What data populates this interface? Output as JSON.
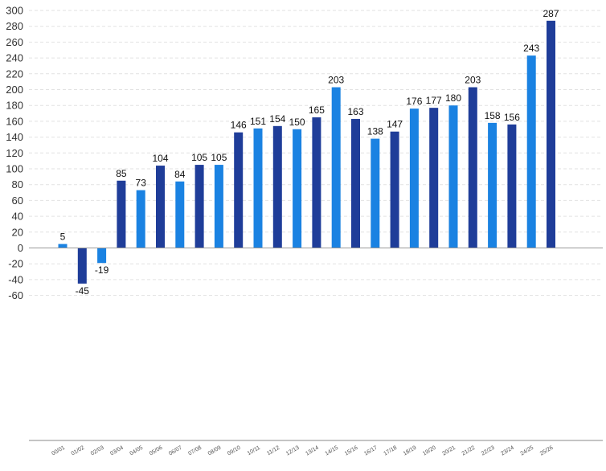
{
  "chart_data": {
    "type": "bar",
    "title": "",
    "xlabel": "",
    "ylabel": "",
    "ylim": [
      -60,
      300
    ],
    "yticks": [
      300,
      280,
      260,
      240,
      220,
      200,
      180,
      160,
      140,
      120,
      100,
      80,
      60,
      40,
      20,
      0,
      -20,
      -40,
      -60
    ],
    "grid": true,
    "legend": "none",
    "categories": [
      "00/01",
      "01/02",
      "02/03",
      "03/04",
      "04/05",
      "05/06",
      "06/07",
      "07/08",
      "08/09",
      "09/10",
      "10/11",
      "11/12",
      "12/13",
      "13/14",
      "14/15",
      "15/16",
      "16/17",
      "17/18",
      "18/19",
      "19/20",
      "20/21",
      "21/22",
      "22/23",
      "23/24",
      "24/25",
      "25/26"
    ],
    "values": [
      5,
      -45,
      -19,
      85,
      73,
      104,
      84,
      105,
      105,
      146,
      151,
      154,
      150,
      165,
      203,
      163,
      138,
      147,
      176,
      177,
      180,
      203,
      158,
      156,
      243,
      287
    ],
    "colors": {
      "dark": "#1f3d99",
      "light": "#1a82e2"
    },
    "bar_colors": [
      "light",
      "dark",
      "light",
      "dark",
      "light",
      "dark",
      "light",
      "dark",
      "light",
      "dark",
      "light",
      "dark",
      "light",
      "dark",
      "light",
      "dark",
      "light",
      "dark",
      "light",
      "dark",
      "light",
      "dark",
      "light",
      "dark",
      "light",
      "dark"
    ]
  }
}
